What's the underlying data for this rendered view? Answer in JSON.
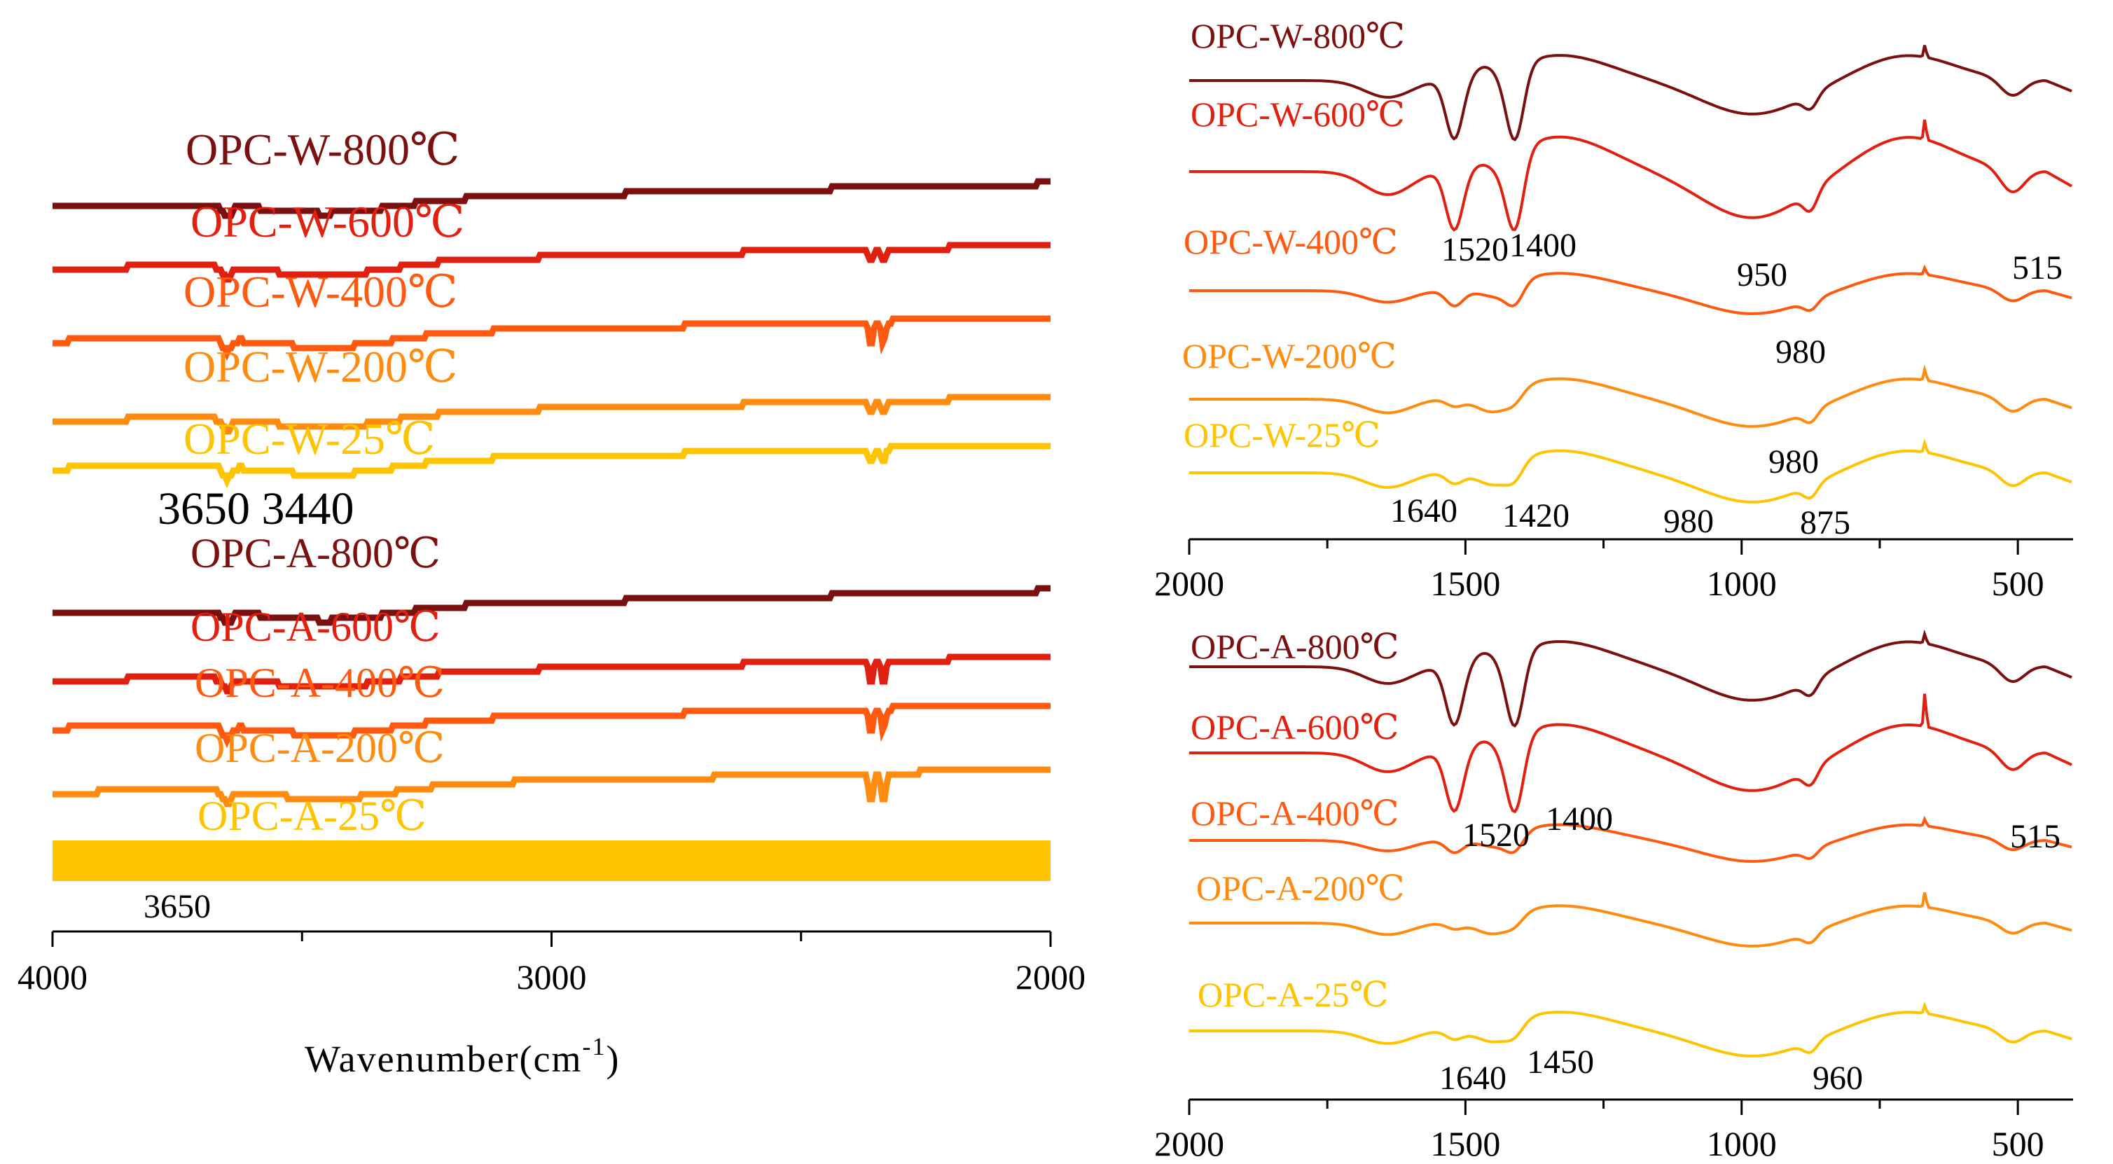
{
  "chart_data": [
    {
      "id": "left",
      "type": "line",
      "title": "",
      "xlabel_main": "Wavenumber(cm",
      "xlabel_sup": "-1",
      "xlabel_tail": ")",
      "xlim": [
        4000,
        2000
      ],
      "xticks": [
        "4000",
        "3000",
        "2000"
      ],
      "grid": false,
      "annotations": [
        "3650 3440",
        "3650"
      ],
      "series": [
        {
          "name": "OPC-W-800℃",
          "color": "#7b1010",
          "mark": "co2none",
          "co2": 0
        },
        {
          "name": "OPC-W-600℃",
          "color": "#e02010",
          "mark": "co2small",
          "co2": 1
        },
        {
          "name": "OPC-W-400℃",
          "color": "#ff5a10",
          "mark": "co2",
          "co2": 2
        },
        {
          "name": "OPC-W-200℃",
          "color": "#ff8c10",
          "mark": "co2small",
          "co2": 1
        },
        {
          "name": "OPC-W-25℃",
          "color": "#ffc400",
          "mark": "co2small",
          "co2": 1
        },
        {
          "name": "OPC-A-800℃",
          "color": "#7b1010",
          "mark": "co2none",
          "co2": 0
        },
        {
          "name": "OPC-A-600℃",
          "color": "#e02010",
          "mark": "co2",
          "co2": 2
        },
        {
          "name": "OPC-A-400℃",
          "color": "#ff5a10",
          "mark": "co2",
          "co2": 2
        },
        {
          "name": "OPC-A-200℃",
          "color": "#ff8c10",
          "mark": "co2big",
          "co2": 3
        },
        {
          "name": "OPC-A-25℃",
          "color": "#ffc400",
          "mark": "band",
          "co2": 0
        }
      ]
    },
    {
      "id": "right-top",
      "type": "line",
      "xlim": [
        2000,
        400
      ],
      "xticks": [
        "2000",
        "1500",
        "1000",
        "500"
      ],
      "grid": false,
      "annotations": [
        "1520",
        "1400",
        "950",
        "515",
        "980",
        "980",
        "1640",
        "1420",
        "980",
        "875"
      ],
      "series": [
        {
          "name": "OPC-W-800℃",
          "color": "#7b1010"
        },
        {
          "name": "OPC-W-600℃",
          "color": "#e02010"
        },
        {
          "name": "OPC-W-400℃",
          "color": "#ff5a10"
        },
        {
          "name": "OPC-W-200℃",
          "color": "#ff8c10"
        },
        {
          "name": "OPC-W-25℃",
          "color": "#ffc400"
        }
      ]
    },
    {
      "id": "right-bottom",
      "type": "line",
      "xlim": [
        2000,
        400
      ],
      "xticks": [
        "2000",
        "1500",
        "1000",
        "500"
      ],
      "grid": false,
      "annotations": [
        "1520",
        "1400",
        "515",
        "1640",
        "1450",
        "960"
      ],
      "series": [
        {
          "name": "OPC-A-800℃",
          "color": "#7b1010"
        },
        {
          "name": "OPC-A-600℃",
          "color": "#e02010"
        },
        {
          "name": "OPC-A-400℃",
          "color": "#ff5a10"
        },
        {
          "name": "OPC-A-200℃",
          "color": "#ff8c10"
        },
        {
          "name": "OPC-A-25℃",
          "color": "#ffc400"
        }
      ]
    }
  ]
}
